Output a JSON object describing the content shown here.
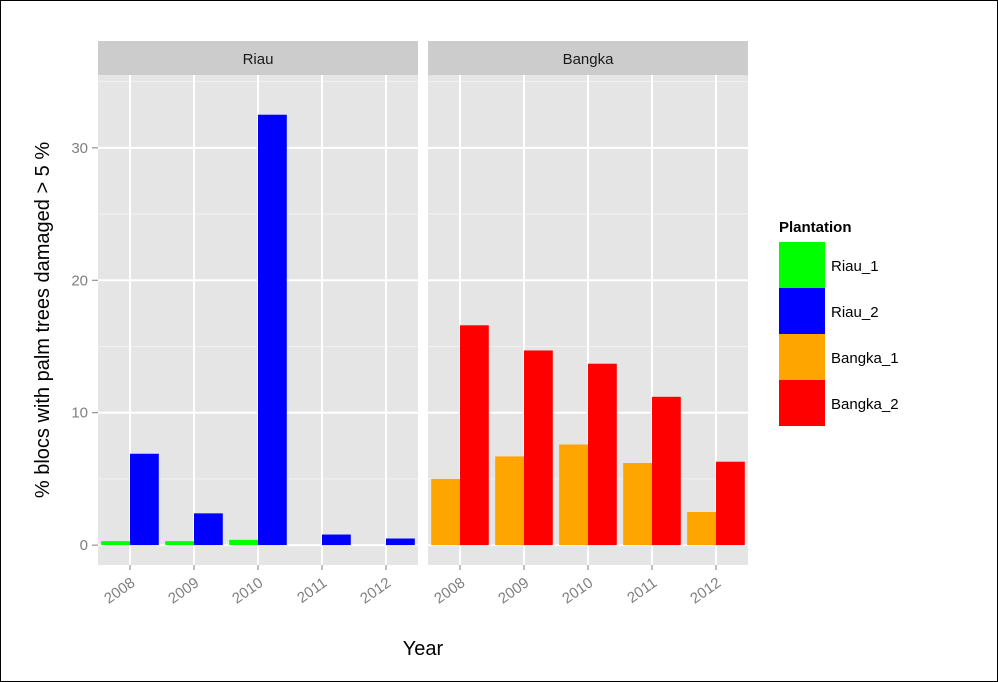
{
  "chart_data": {
    "type": "bar",
    "layout": "faceted-grouped",
    "xlabel": "Year",
    "ylabel": "% blocs with palm trees damaged > 5 %",
    "ylim": [
      -1.5,
      35.5
    ],
    "yticks": [
      0,
      10,
      20,
      30
    ],
    "categories": [
      "2008",
      "2009",
      "2010",
      "2011",
      "2012"
    ],
    "grid": true,
    "legend_position": "right",
    "legend_title": "Plantation",
    "legend": [
      {
        "name": "Riau_1",
        "color": "#00ff00"
      },
      {
        "name": "Riau_2",
        "color": "#0000ff"
      },
      {
        "name": "Bangka_1",
        "color": "#ffa500"
      },
      {
        "name": "Bangka_2",
        "color": "#ff0000"
      }
    ],
    "facets": [
      {
        "label": "Riau",
        "series": [
          {
            "name": "Riau_1",
            "color": "#00ff00",
            "values": [
              0.3,
              0.3,
              0.4,
              null,
              null
            ]
          },
          {
            "name": "Riau_2",
            "color": "#0000ff",
            "values": [
              6.9,
              2.4,
              32.5,
              0.8,
              0.5
            ]
          }
        ]
      },
      {
        "label": "Bangka",
        "series": [
          {
            "name": "Bangka_1",
            "color": "#ffa500",
            "values": [
              5.0,
              6.7,
              7.6,
              6.2,
              2.5
            ]
          },
          {
            "name": "Bangka_2",
            "color": "#ff0000",
            "values": [
              16.6,
              14.7,
              13.7,
              11.2,
              6.3
            ]
          }
        ]
      }
    ]
  }
}
